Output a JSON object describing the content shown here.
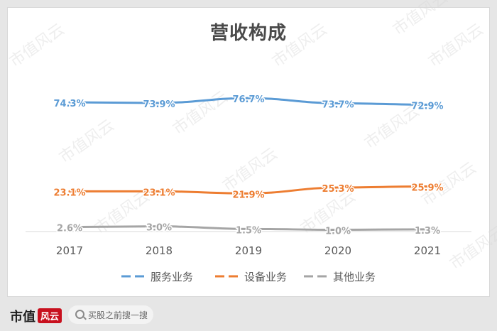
{
  "chart_data": {
    "type": "line",
    "title": "营收构成",
    "categories": [
      "2017",
      "2018",
      "2019",
      "2020",
      "2021"
    ],
    "series": [
      {
        "name": "服务业务",
        "values": [
          74.3,
          73.9,
          76.7,
          73.7,
          72.9
        ],
        "labels": [
          "74.3%",
          "73.9%",
          "76.7%",
          "73.7%",
          "72.9%"
        ],
        "color": "#5b9bd5"
      },
      {
        "name": "设备业务",
        "values": [
          23.1,
          23.1,
          21.9,
          25.3,
          25.9
        ],
        "labels": [
          "23.1%",
          "23.1%",
          "21.9%",
          "25.3%",
          "25.9%"
        ],
        "color": "#ed7d31"
      },
      {
        "name": "其他业务",
        "values": [
          2.6,
          3.0,
          1.5,
          1.0,
          1.3
        ],
        "labels": [
          "2.6%",
          "3.0%",
          "1.5%",
          "1.0%",
          "1.3%"
        ],
        "color": "#a5a5a5"
      }
    ],
    "ylim": [
      0,
      80
    ],
    "grid": false,
    "legend_position": "bottom"
  },
  "watermark": "市值风云",
  "footer": {
    "brand_text": "市值",
    "brand_mark": "风云",
    "search_placeholder": "买股之前搜一搜"
  }
}
